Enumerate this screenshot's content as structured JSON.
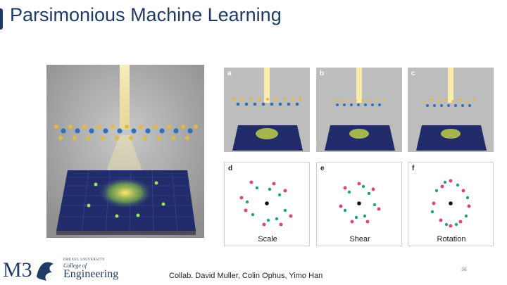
{
  "slide": {
    "title": "Parsimonious Machine Learning",
    "collab_text": "Collab. David Muller, Colin Ophus, Yimo Han",
    "page_number": "38"
  },
  "figure": {
    "panels": [
      {
        "label": "a"
      },
      {
        "label": "b"
      },
      {
        "label": "c"
      },
      {
        "label": "d",
        "caption": "Scale"
      },
      {
        "label": "e",
        "caption": "Shear"
      },
      {
        "label": "f",
        "caption": "Rotation"
      }
    ]
  },
  "logo": {
    "university": "DREXEL UNIVERSITY",
    "college": "College of",
    "school": "Engineering"
  },
  "colors": {
    "title": "#1f3a64",
    "atom_yellow": "#e5b93a",
    "atom_blue": "#2f6fb5",
    "detector": "#222c6a",
    "spot_pink": "#d9467a",
    "spot_teal": "#1f9e8f"
  }
}
